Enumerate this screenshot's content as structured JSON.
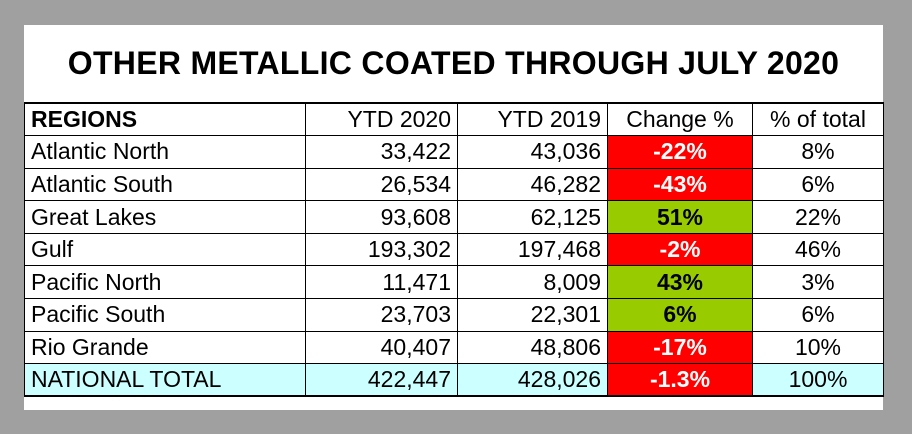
{
  "title": "OTHER METALLIC COATED THROUGH JULY 2020",
  "headers": {
    "regions": "REGIONS",
    "ytd2020": "YTD 2020",
    "ytd2019": "YTD 2019",
    "change": "Change %",
    "share": "% of total"
  },
  "rows": [
    {
      "region": "Atlantic North",
      "ytd2020": "33,422",
      "ytd2019": "43,036",
      "change": "-22%",
      "share": "8%"
    },
    {
      "region": "Atlantic South",
      "ytd2020": "26,534",
      "ytd2019": "46,282",
      "change": "-43%",
      "share": "6%"
    },
    {
      "region": "Great Lakes",
      "ytd2020": "93,608",
      "ytd2019": "62,125",
      "change": "51%",
      "share": "22%"
    },
    {
      "region": "Gulf",
      "ytd2020": "193,302",
      "ytd2019": "197,468",
      "change": "-2%",
      "share": "46%"
    },
    {
      "region": "Pacific North",
      "ytd2020": "11,471",
      "ytd2019": "8,009",
      "change": "43%",
      "share": "3%"
    },
    {
      "region": "Pacific South",
      "ytd2020": "23,703",
      "ytd2019": "22,301",
      "change": "6%",
      "share": "6%"
    },
    {
      "region": "Rio Grande",
      "ytd2020": "40,407",
      "ytd2019": "48,806",
      "change": "-17%",
      "share": "10%"
    }
  ],
  "total": {
    "region": "NATIONAL TOTAL",
    "ytd2020": "422,447",
    "ytd2019": "428,026",
    "change": "-1.3%",
    "share": "100%"
  },
  "colors": {
    "negative": "#ff0000",
    "positive": "#99cc00",
    "total_row": "#ccffff",
    "frame": "#a0a0a0"
  }
}
